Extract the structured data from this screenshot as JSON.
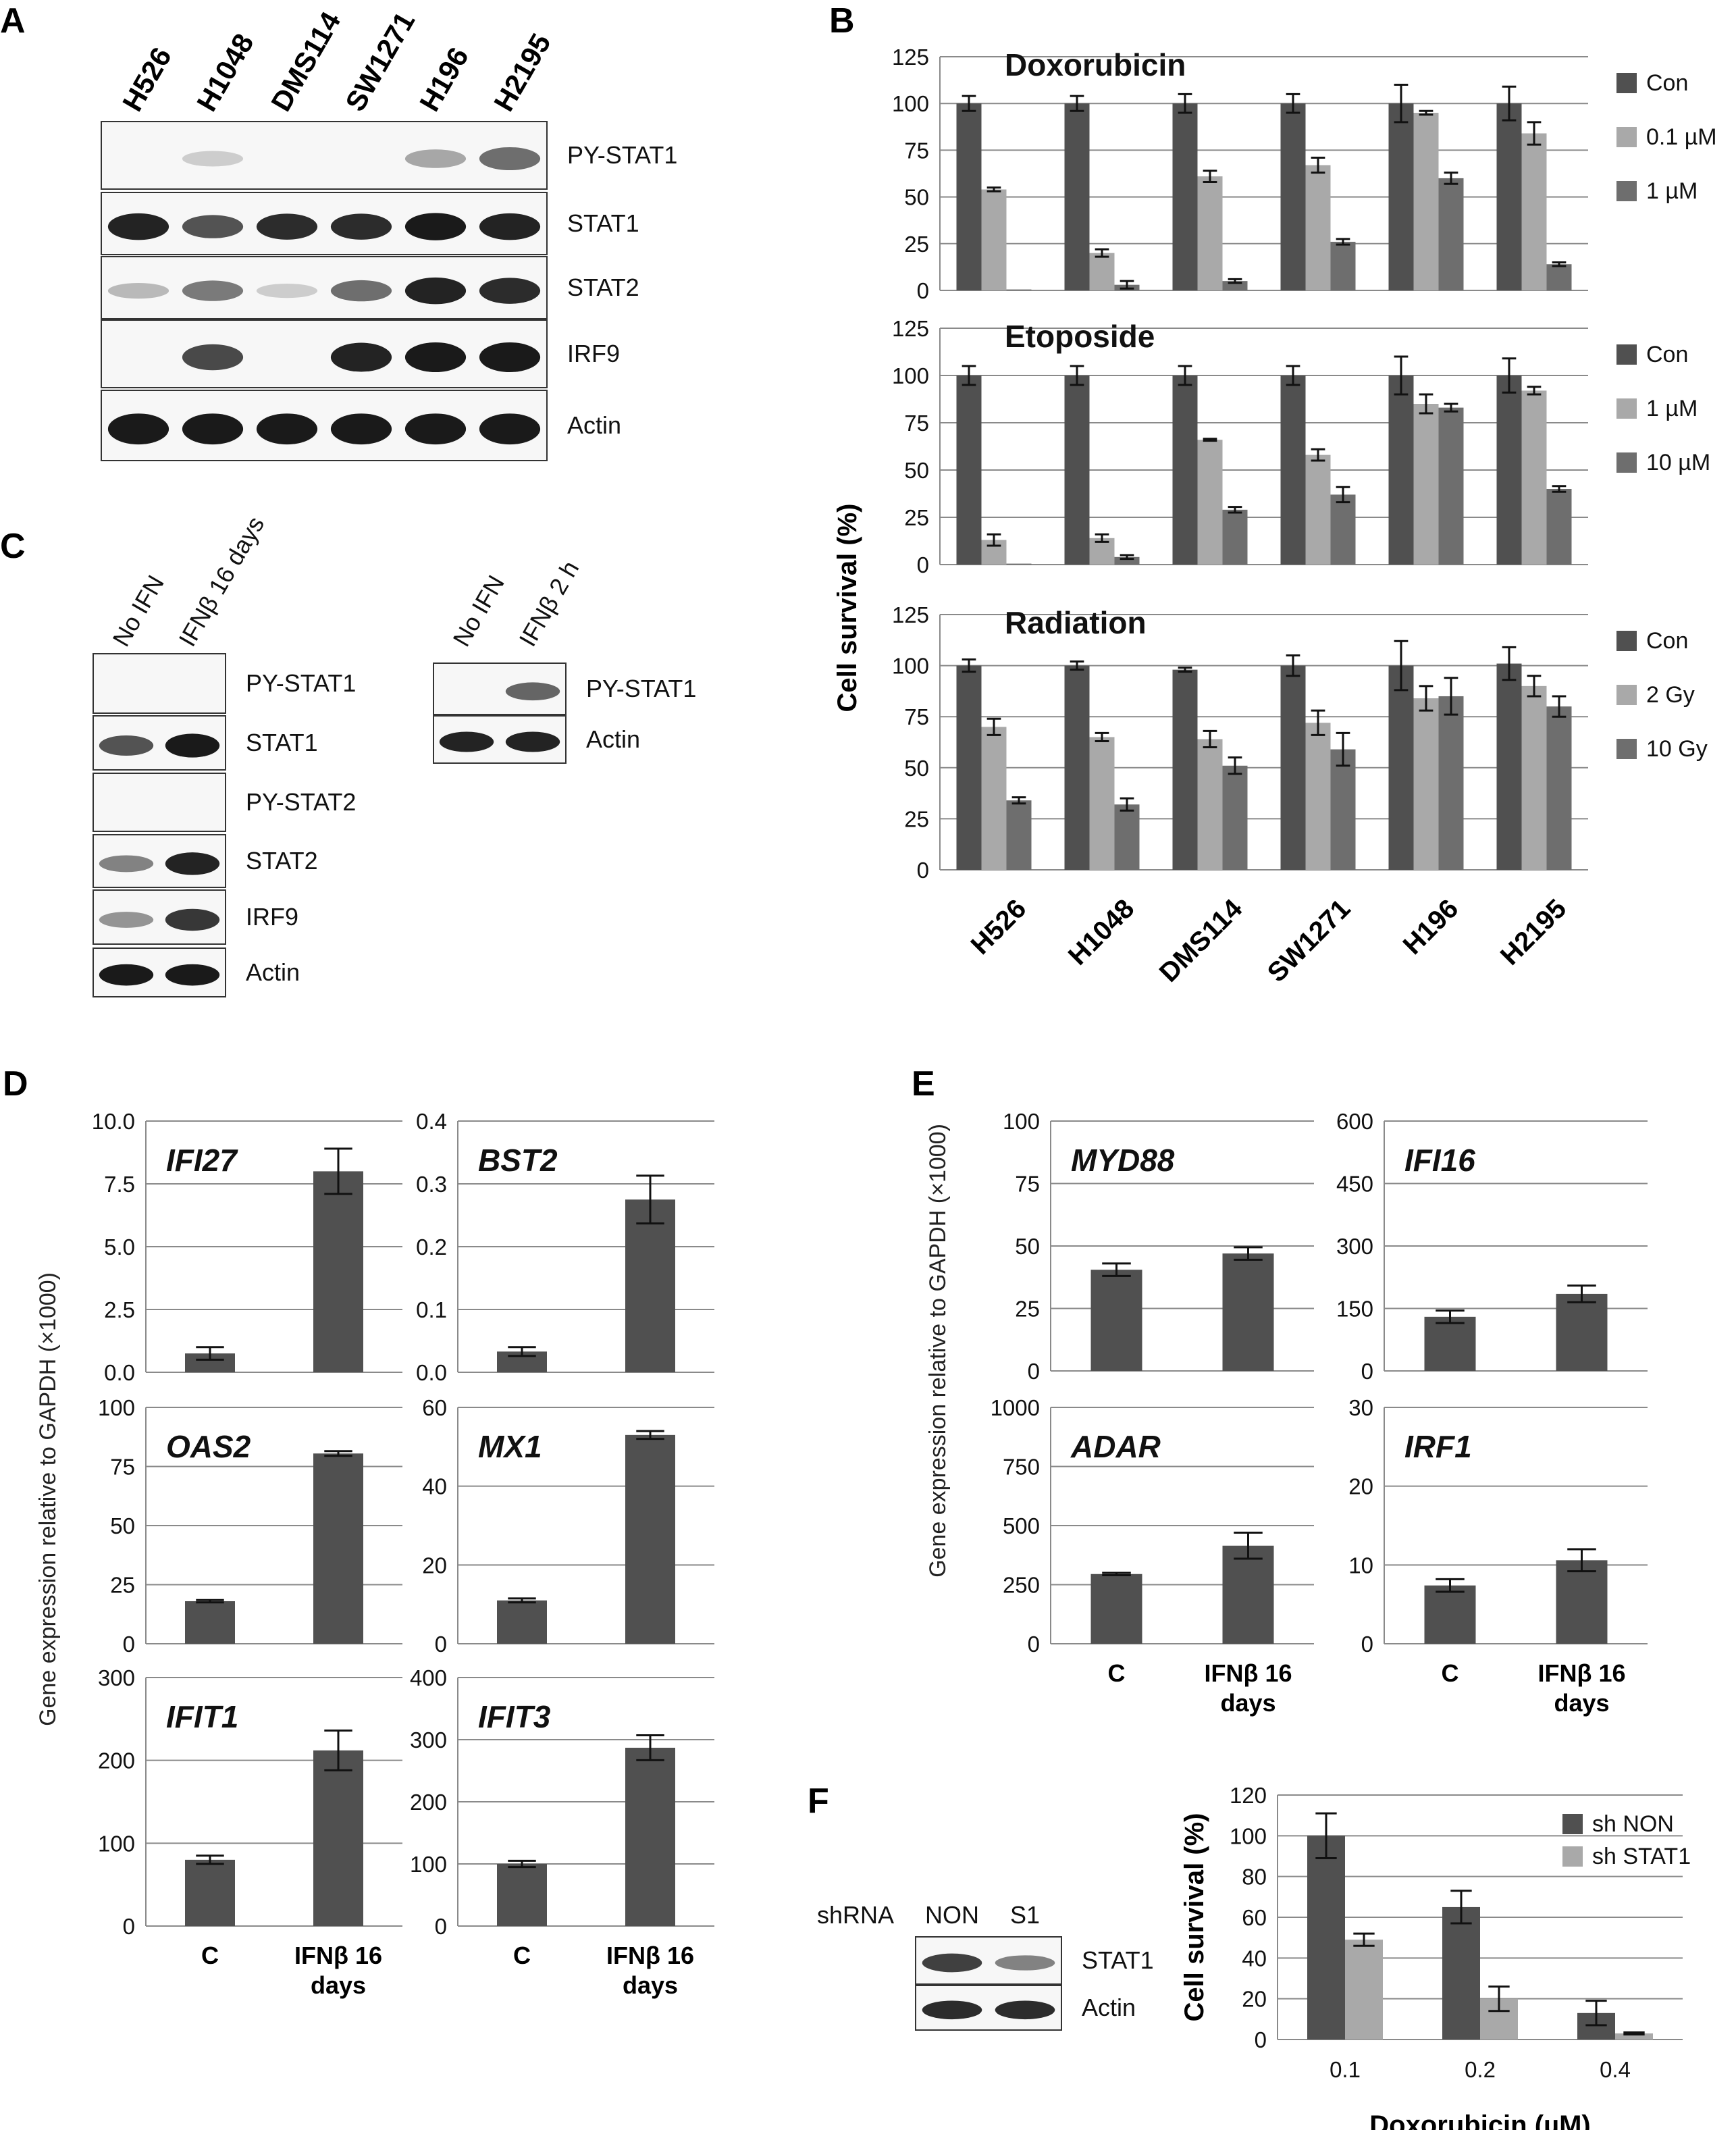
{
  "colors": {
    "dark": "#505050",
    "light": "#a9a9a9",
    "mid": "#6e6e6e",
    "grid": "#8a8a8a",
    "band": "#1a1a1a"
  },
  "panels": {
    "A": {
      "letter": "A",
      "lanes": [
        "H526",
        "H1048",
        "DMS114",
        "SW1271",
        "H196",
        "H2195"
      ],
      "blots": [
        {
          "label": "PY-STAT1",
          "bands": [
            0,
            0.05,
            0,
            0,
            0.25,
            0.55
          ]
        },
        {
          "label": "STAT1",
          "bands": [
            0.95,
            0.7,
            0.9,
            0.9,
            1.0,
            0.95
          ]
        },
        {
          "label": "STAT2",
          "bands": [
            0.15,
            0.5,
            0.05,
            0.55,
            0.95,
            0.9
          ]
        },
        {
          "label": "IRF9",
          "bands": [
            0,
            0.75,
            0,
            0.95,
            1.0,
            1.0
          ]
        },
        {
          "label": "Actin",
          "bands": [
            1.0,
            1.0,
            1.0,
            1.0,
            1.0,
            1.0
          ]
        }
      ]
    },
    "B": {
      "letter": "B",
      "y_axis_label": "Cell survival (%)",
      "x_categories": [
        "H526",
        "H1048",
        "DMS114",
        "SW1271",
        "H196",
        "H2195"
      ]
    },
    "C": {
      "letter": "C",
      "left": {
        "lanes": [
          "No IFN",
          "IFNβ 16 days"
        ],
        "blots": [
          {
            "label": "PY-STAT1",
            "bands": [
              0,
              0
            ]
          },
          {
            "label": "STAT1",
            "bands": [
              0.7,
              1.0
            ]
          },
          {
            "label": "PY-STAT2",
            "bands": [
              0,
              0
            ]
          },
          {
            "label": "STAT2",
            "bands": [
              0.45,
              0.95
            ]
          },
          {
            "label": "IRF9",
            "bands": [
              0.35,
              0.85
            ]
          },
          {
            "label": "Actin",
            "bands": [
              1.0,
              1.0
            ]
          }
        ]
      },
      "right": {
        "lanes": [
          "No IFN",
          "IFNβ 2 h"
        ],
        "blots": [
          {
            "label": "PY-STAT1",
            "bands": [
              0,
              0.6
            ]
          },
          {
            "label": "Actin",
            "bands": [
              0.95,
              0.95
            ]
          }
        ]
      }
    },
    "D": {
      "letter": "D",
      "y_axis_label": "Gene expression relative to GAPDH (×1000)",
      "x_categories": [
        "C",
        "IFNβ 16 days"
      ]
    },
    "E": {
      "letter": "E",
      "y_axis_label": "Gene expression relative to GAPDH (×1000)",
      "x_categories": [
        "C",
        "IFNβ 16 days"
      ]
    },
    "F": {
      "letter": "F",
      "shrna_label": "shRNA",
      "lanes": [
        "NON",
        "S1"
      ],
      "blots": [
        {
          "label": "STAT1",
          "bands": [
            0.8,
            0.45
          ]
        },
        {
          "label": "Actin",
          "bands": [
            0.9,
            0.9
          ]
        }
      ]
    }
  },
  "chart_data": [
    {
      "id": "B1",
      "type": "bar",
      "title": "Doxorubicin",
      "categories": [
        "H526",
        "H1048",
        "DMS114",
        "SW1271",
        "H196",
        "H2195"
      ],
      "ylim": [
        0,
        125
      ],
      "yticks": [
        0,
        25,
        50,
        75,
        100,
        125
      ],
      "legend": "right",
      "series": [
        {
          "name": "Con",
          "color": "#505050",
          "values": [
            100,
            100,
            100,
            100,
            100,
            100
          ],
          "errors": [
            4,
            4,
            5,
            5,
            10,
            9
          ]
        },
        {
          "name": "0.1 µM",
          "color": "#a9a9a9",
          "values": [
            54,
            20,
            61,
            67,
            95,
            84
          ],
          "errors": [
            1,
            2,
            3,
            4,
            1,
            6
          ]
        },
        {
          "name": "1 µM",
          "color": "#6e6e6e",
          "values": [
            0.5,
            3,
            5,
            26,
            60,
            14
          ],
          "errors": [
            0,
            2,
            1,
            1.5,
            3,
            1
          ]
        }
      ]
    },
    {
      "id": "B2",
      "type": "bar",
      "title": "Etoposide",
      "categories": [
        "H526",
        "H1048",
        "DMS114",
        "SW1271",
        "H196",
        "H2195"
      ],
      "ylim": [
        0,
        125
      ],
      "yticks": [
        0,
        25,
        50,
        75,
        100,
        125
      ],
      "legend": "right",
      "series": [
        {
          "name": "Con",
          "color": "#505050",
          "values": [
            100,
            100,
            100,
            100,
            100,
            100
          ],
          "errors": [
            5,
            5,
            5,
            5,
            10,
            9
          ]
        },
        {
          "name": "1 µM",
          "color": "#a9a9a9",
          "values": [
            13,
            14,
            66,
            58,
            85,
            92
          ],
          "errors": [
            3,
            2,
            0.5,
            3,
            5,
            2
          ]
        },
        {
          "name": "10 µM",
          "color": "#6e6e6e",
          "values": [
            0.5,
            4,
            29,
            37,
            83,
            40
          ],
          "errors": [
            0,
            1,
            1.5,
            4,
            2,
            1.5
          ]
        }
      ]
    },
    {
      "id": "B3",
      "type": "bar",
      "title": "Radiation",
      "categories": [
        "H526",
        "H1048",
        "DMS114",
        "SW1271",
        "H196",
        "H2195"
      ],
      "ylim": [
        0,
        125
      ],
      "yticks": [
        0,
        25,
        50,
        75,
        100,
        125
      ],
      "legend": "right",
      "series": [
        {
          "name": "Con",
          "color": "#505050",
          "values": [
            100,
            100,
            98,
            100,
            100,
            101
          ],
          "errors": [
            3,
            2,
            1,
            5,
            12,
            8
          ]
        },
        {
          "name": "2 Gy",
          "color": "#a9a9a9",
          "values": [
            70,
            65,
            64,
            72,
            84,
            90
          ],
          "errors": [
            4,
            2,
            4,
            6,
            6,
            5
          ]
        },
        {
          "name": "10 Gy",
          "color": "#6e6e6e",
          "values": [
            34,
            32,
            51,
            59,
            85,
            80
          ],
          "errors": [
            1.5,
            3,
            4,
            8,
            9,
            5
          ]
        }
      ]
    },
    {
      "id": "D-IFI27",
      "type": "bar",
      "title": "IFI27",
      "categories": [
        "C",
        "IFNβ 16 days"
      ],
      "ylim": [
        0,
        10
      ],
      "yticks": [
        0,
        2.5,
        5,
        7.5,
        10
      ],
      "tick_labels": [
        "0.0",
        "2.5",
        "5.0",
        "7.5",
        "10.0"
      ],
      "values": [
        0.75,
        8.0
      ],
      "errors": [
        0.25,
        0.9
      ]
    },
    {
      "id": "D-BST2",
      "type": "bar",
      "title": "BST2",
      "categories": [
        "C",
        "IFNβ 16 days"
      ],
      "ylim": [
        0,
        0.4
      ],
      "yticks": [
        0,
        0.1,
        0.2,
        0.3,
        0.4
      ],
      "tick_labels": [
        "0.0",
        "0.1",
        "0.2",
        "0.3",
        "0.4"
      ],
      "values": [
        0.033,
        0.275
      ],
      "errors": [
        0.007,
        0.038
      ]
    },
    {
      "id": "D-OAS2",
      "type": "bar",
      "title": "OAS2",
      "categories": [
        "C",
        "IFNβ 16 days"
      ],
      "ylim": [
        0,
        100
      ],
      "yticks": [
        0,
        25,
        50,
        75,
        100
      ],
      "tick_labels": [
        "0",
        "25",
        "50",
        "75",
        "100"
      ],
      "values": [
        18,
        80.5
      ],
      "errors": [
        0.5,
        1
      ]
    },
    {
      "id": "D-MX1",
      "type": "bar",
      "title": "MX1",
      "categories": [
        "C",
        "IFNβ 16 days"
      ],
      "ylim": [
        0,
        60
      ],
      "yticks": [
        0,
        20,
        40,
        60
      ],
      "tick_labels": [
        "0",
        "20",
        "40",
        "60"
      ],
      "values": [
        11,
        53
      ],
      "errors": [
        0.5,
        1
      ]
    },
    {
      "id": "D-IFIT1",
      "type": "bar",
      "title": "IFIT1",
      "categories": [
        "C",
        "IFNβ 16 days"
      ],
      "ylim": [
        0,
        300
      ],
      "yticks": [
        0,
        100,
        200,
        300
      ],
      "tick_labels": [
        "0",
        "100",
        "200",
        "300"
      ],
      "values": [
        80,
        212
      ],
      "errors": [
        5,
        24
      ]
    },
    {
      "id": "D-IFIT3",
      "type": "bar",
      "title": "IFIT3",
      "categories": [
        "C",
        "IFNβ 16 days"
      ],
      "ylim": [
        0,
        400
      ],
      "yticks": [
        0,
        100,
        200,
        300,
        400
      ],
      "tick_labels": [
        "0",
        "100",
        "200",
        "300",
        "400"
      ],
      "values": [
        100,
        287
      ],
      "errors": [
        5,
        20
      ]
    },
    {
      "id": "E-MYD88",
      "type": "bar",
      "title": "MYD88",
      "categories": [
        "C",
        "IFNβ 16 days"
      ],
      "ylim": [
        0,
        100
      ],
      "yticks": [
        0,
        25,
        50,
        75,
        100
      ],
      "tick_labels": [
        "0",
        "25",
        "50",
        "75",
        "100"
      ],
      "values": [
        40.5,
        47
      ],
      "errors": [
        2.5,
        2.5
      ]
    },
    {
      "id": "E-IFI16",
      "type": "bar",
      "title": "IFI16",
      "categories": [
        "C",
        "IFNβ 16 days"
      ],
      "ylim": [
        0,
        600
      ],
      "yticks": [
        0,
        150,
        300,
        450,
        600
      ],
      "tick_labels": [
        "0",
        "150",
        "300",
        "450",
        "600"
      ],
      "values": [
        130,
        185
      ],
      "errors": [
        15,
        20
      ]
    },
    {
      "id": "E-ADAR",
      "type": "bar",
      "title": "ADAR",
      "categories": [
        "C",
        "IFNβ 16 days"
      ],
      "ylim": [
        0,
        1000
      ],
      "yticks": [
        0,
        250,
        500,
        750,
        1000
      ],
      "tick_labels": [
        "0",
        "250",
        "500",
        "750",
        "1000"
      ],
      "values": [
        295,
        415
      ],
      "errors": [
        5,
        55
      ]
    },
    {
      "id": "E-IRF1",
      "type": "bar",
      "title": "IRF1",
      "categories": [
        "C",
        "IFNβ 16 days"
      ],
      "ylim": [
        0,
        30
      ],
      "yticks": [
        0,
        10,
        20,
        30
      ],
      "tick_labels": [
        "0",
        "10",
        "20",
        "30"
      ],
      "values": [
        7.4,
        10.6
      ],
      "errors": [
        0.8,
        1.4
      ]
    },
    {
      "id": "F-chart",
      "type": "bar",
      "title": "",
      "categories": [
        "0.1",
        "0.2",
        "0.4"
      ],
      "xlabel": "Doxorubicin (µM)",
      "ylabel": "Cell survival (%)",
      "ylim": [
        0,
        120
      ],
      "yticks": [
        0,
        20,
        40,
        60,
        80,
        100,
        120
      ],
      "legend": "top-right",
      "series": [
        {
          "name": "sh NON",
          "color": "#505050",
          "values": [
            100,
            65,
            13
          ],
          "errors": [
            11,
            8,
            6
          ]
        },
        {
          "name": "sh STAT1",
          "color": "#a9a9a9",
          "values": [
            49,
            20,
            3
          ],
          "errors": [
            3,
            6,
            0.5
          ]
        }
      ]
    }
  ]
}
